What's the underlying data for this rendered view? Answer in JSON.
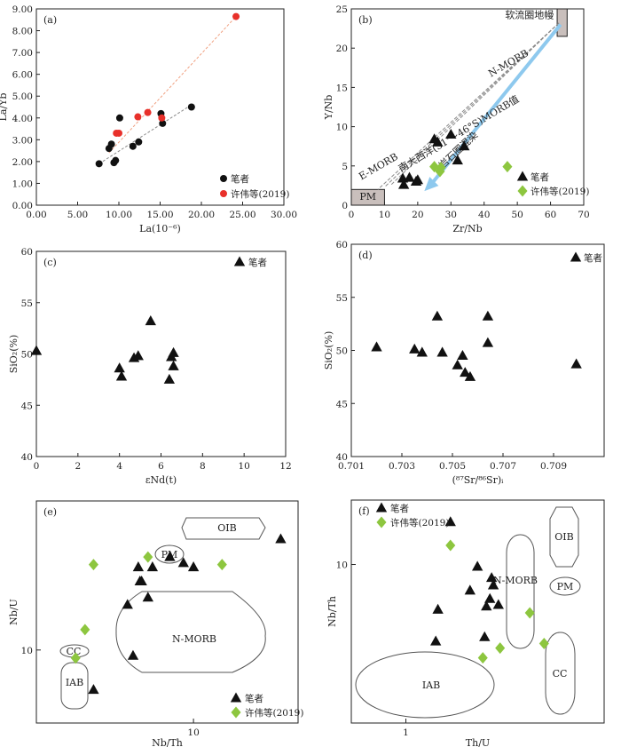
{
  "colors": {
    "black": "#111111",
    "red": "#e8302a",
    "green": "#8dc63f",
    "box": "#c9bfbc",
    "arrow": "#8ec9ee",
    "dash_red": "#f0a080",
    "dash_grey": "#8a8a8a"
  },
  "chart_data": [
    {
      "panel": "(a)",
      "type": "scatter",
      "xlabel": "La(10⁻⁶)",
      "ylabel": "La/Yb",
      "xlim": [
        0,
        30
      ],
      "ylim": [
        0,
        9
      ],
      "xticks": [
        "0.00",
        "5.00",
        "10.00",
        "15.00",
        "20.00",
        "25.00",
        "30.00"
      ],
      "yticks": [
        "0.00",
        "1.00",
        "2.00",
        "3.00",
        "4.00",
        "5.00",
        "6.00",
        "7.00",
        "8.00",
        "9.00"
      ],
      "series": [
        {
          "name": "笔者",
          "marker": "circle",
          "color": "#111111",
          "x": [
            7.6,
            8.8,
            9.1,
            9.4,
            9.6,
            10.1,
            11.7,
            12.4,
            15.1,
            15.3,
            18.8
          ],
          "y": [
            1.9,
            2.6,
            2.8,
            1.95,
            2.05,
            4.0,
            2.7,
            2.9,
            4.2,
            3.75,
            4.5
          ]
        },
        {
          "name": "许伟等(2019)",
          "marker": "circle",
          "color": "#e8302a",
          "x": [
            9.7,
            10.0,
            12.3,
            13.5,
            15.2,
            24.2
          ],
          "y": [
            3.3,
            3.3,
            4.05,
            4.25,
            4.0,
            8.65
          ]
        }
      ],
      "trendlines": [
        {
          "color": "#f0a080",
          "from": [
            8.8,
            2.4
          ],
          "to": [
            24.2,
            8.65
          ]
        },
        {
          "color": "#8a8a8a",
          "from": [
            7.6,
            1.9
          ],
          "to": [
            18.8,
            4.6
          ]
        }
      ]
    },
    {
      "panel": "(b)",
      "type": "scatter",
      "xlabel": "Zr/Nb",
      "ylabel": "Y/Nb",
      "xlim": [
        0,
        70
      ],
      "ylim": [
        0,
        25
      ],
      "xticks": [
        "0",
        "10",
        "20",
        "30",
        "40",
        "50",
        "60",
        "70"
      ],
      "yticks": [
        "0",
        "5",
        "10",
        "15",
        "20",
        "25"
      ],
      "boxes": [
        {
          "label": "PM",
          "x": [
            0,
            10
          ],
          "y": [
            0,
            2
          ]
        },
        {
          "label": "软流圈地幔",
          "x": [
            62,
            65
          ],
          "y": [
            21.5,
            25
          ]
        }
      ],
      "annotations": [
        "E-MORB",
        "N-MORB",
        "南大西洋(31°~46°S)MORB值",
        "岩石圈混染"
      ],
      "series": [
        {
          "name": "笔者",
          "marker": "triangle",
          "color": "#111111",
          "x": [
            15.5,
            15.8,
            17.5,
            19.5,
            20.0,
            25.0,
            26.0,
            30.0,
            32.0,
            34.0
          ],
          "y": [
            3.4,
            2.6,
            3.5,
            3.0,
            3.2,
            8.4,
            8.0,
            9.0,
            5.7,
            7.5
          ]
        },
        {
          "name": "许伟等(2019)",
          "marker": "diamond",
          "color": "#8dc63f",
          "x": [
            25.0,
            26.7,
            27.0,
            47.0
          ],
          "y": [
            4.9,
            4.3,
            4.8,
            4.9
          ]
        }
      ]
    },
    {
      "panel": "(c)",
      "type": "scatter",
      "xlabel": "εNd(t)",
      "ylabel": "SiO₂(%)",
      "xlim": [
        0,
        12
      ],
      "ylim": [
        40,
        60
      ],
      "xticks": [
        "0",
        "2",
        "4",
        "6",
        "8",
        "10",
        "12"
      ],
      "yticks": [
        "40",
        "45",
        "50",
        "55",
        "60"
      ],
      "series": [
        {
          "name": "笔者",
          "marker": "triangle",
          "color": "#111111",
          "x": [
            0.0,
            4.0,
            4.1,
            4.7,
            4.9,
            5.5,
            6.4,
            6.5,
            6.6,
            6.6
          ],
          "y": [
            50.3,
            48.6,
            47.8,
            49.6,
            49.8,
            53.2,
            47.5,
            49.7,
            48.8,
            50.1
          ]
        }
      ]
    },
    {
      "panel": "(d)",
      "type": "scatter",
      "xlabel": "(⁸⁷Sr/⁸⁶Sr)ᵢ",
      "ylabel": "SiO₂(%)",
      "xlim": [
        0.701,
        0.711
      ],
      "ylim": [
        40,
        60
      ],
      "xticks": [
        "0.701",
        "0.703",
        "0.705",
        "0.707",
        "0.709"
      ],
      "yticks": [
        "40",
        "45",
        "50",
        "55",
        "60"
      ],
      "series": [
        {
          "name": "笔者",
          "marker": "triangle",
          "color": "#111111",
          "x": [
            0.702,
            0.7035,
            0.7038,
            0.7044,
            0.7046,
            0.7052,
            0.7054,
            0.7055,
            0.7057,
            0.7064,
            0.7064,
            0.7099
          ],
          "y": [
            50.3,
            50.1,
            49.8,
            53.2,
            49.8,
            48.6,
            49.5,
            47.9,
            47.5,
            53.2,
            50.7,
            48.7
          ]
        }
      ]
    },
    {
      "panel": "(e)",
      "type": "scatter",
      "xlabel": "Nb/Th",
      "ylabel": "Nb/U",
      "x_scale": "log",
      "y_scale": "log",
      "xticks": [
        "10"
      ],
      "yticks": [
        "10"
      ],
      "regions": [
        "OIB",
        "PM",
        "N-MORB",
        "CC",
        "IAB"
      ],
      "series": [
        {
          "name": "笔者",
          "marker": "triangle",
          "color": "#111111",
          "x": [
            3.5,
            5.0,
            5.3,
            5.6,
            5.7,
            5.8,
            6.2,
            6.5,
            7.8,
            9.0,
            10.0,
            25.0
          ],
          "y": [
            7.0,
            15.0,
            9.5,
            21.0,
            18.5,
            18.5,
            16.0,
            21.0,
            23.0,
            21.8,
            21.0,
            27.0
          ]
        },
        {
          "name": "许伟等(2019)",
          "marker": "diamond",
          "color": "#8dc63f",
          "x": [
            2.9,
            3.2,
            3.5,
            6.2,
            13.5
          ],
          "y": [
            9.3,
            12.0,
            21.5,
            23.0,
            21.5
          ]
        }
      ]
    },
    {
      "panel": "(f)",
      "type": "scatter",
      "xlabel": "Th/U",
      "ylabel": "Nb/Th",
      "x_scale": "log",
      "y_scale": "log",
      "xticks": [
        "1"
      ],
      "yticks": [
        "10"
      ],
      "regions": [
        "OIB",
        "N-MORB",
        "PM",
        "IAB",
        "CC"
      ],
      "series": [
        {
          "name": "笔者",
          "marker": "triangle",
          "color": "#111111",
          "x": [
            1.13,
            1.14,
            1.2,
            1.3,
            1.34,
            1.38,
            1.39,
            1.41,
            1.42,
            1.43,
            1.46
          ],
          "y": [
            4.8,
            6.5,
            15.0,
            7.8,
            9.8,
            5.0,
            6.7,
            7.2,
            8.8,
            8.2,
            6.8
          ]
        },
        {
          "name": "许伟等(2019)",
          "marker": "diamond",
          "color": "#8dc63f",
          "x": [
            1.2,
            1.37,
            1.47,
            1.66,
            1.76
          ],
          "y": [
            12.0,
            4.1,
            4.5,
            6.3,
            4.7
          ]
        }
      ]
    }
  ]
}
